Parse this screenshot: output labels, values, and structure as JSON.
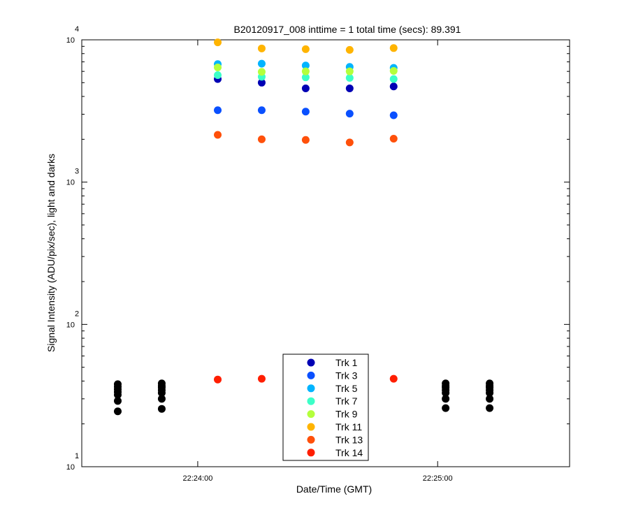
{
  "chart_data": {
    "type": "scatter",
    "title": "B20120917_008 inttime = 1 total time (secs): 89.391",
    "xlabel": "Date/Time (GMT)",
    "ylabel": "Signal Intensity (ADU/pix/sec), light and darks",
    "yscale": "log",
    "ylim": [
      10,
      10000
    ],
    "xlim": [
      "22:23:31",
      "22:25:33"
    ],
    "x_ticks": [
      {
        "value": "22:24:00",
        "label": "22:24:00"
      },
      {
        "value": "22:25:00",
        "label": "22:25:00"
      }
    ],
    "y_ticks": [
      {
        "value": 10,
        "base": "10",
        "exp": "1"
      },
      {
        "value": 100,
        "base": "10",
        "exp": "2"
      },
      {
        "value": 1000,
        "base": "10",
        "exp": "3"
      },
      {
        "value": 10000,
        "base": "10",
        "exp": "4"
      }
    ],
    "grid": false,
    "legend_position": "bottom-center",
    "series": [
      {
        "name": "Trk 1",
        "color": "#0000b4",
        "x": [
          "22:24:05",
          "22:24:16",
          "22:24:27",
          "22:24:38",
          "22:24:49"
        ],
        "y": [
          5300,
          5000,
          4560,
          4560,
          4700
        ]
      },
      {
        "name": "Trk 3",
        "color": "#0a50ff",
        "x": [
          "22:24:05",
          "22:24:16",
          "22:24:27",
          "22:24:38",
          "22:24:49"
        ],
        "y": [
          3200,
          3200,
          3130,
          3030,
          2950
        ]
      },
      {
        "name": "Trk 5",
        "color": "#00b4ff",
        "x": [
          "22:24:05",
          "22:24:16",
          "22:24:27",
          "22:24:38",
          "22:24:49"
        ],
        "y": [
          6750,
          6800,
          6600,
          6450,
          6350
        ]
      },
      {
        "name": "Trk 7",
        "color": "#3cffc8",
        "x": [
          "22:24:05",
          "22:24:16",
          "22:24:27",
          "22:24:38",
          "22:24:49"
        ],
        "y": [
          5650,
          5500,
          5450,
          5400,
          5300
        ]
      },
      {
        "name": "Trk 9",
        "color": "#b4ff3c",
        "x": [
          "22:24:05",
          "22:24:16",
          "22:24:27",
          "22:24:38",
          "22:24:49"
        ],
        "y": [
          6400,
          5950,
          6000,
          6000,
          6050
        ]
      },
      {
        "name": "Trk 11",
        "color": "#ffb400",
        "x": [
          "22:24:05",
          "22:24:16",
          "22:24:27",
          "22:24:38",
          "22:24:49"
        ],
        "y": [
          9600,
          8700,
          8600,
          8500,
          8750
        ]
      },
      {
        "name": "Trk 13",
        "color": "#ff500a",
        "x": [
          "22:24:05",
          "22:24:16",
          "22:24:27",
          "22:24:38",
          "22:24:49"
        ],
        "y": [
          2150,
          2000,
          1980,
          1900,
          2020
        ]
      },
      {
        "name": "Trk 14",
        "color": "#ff1e00",
        "x": [
          "22:24:05",
          "22:24:16",
          "22:24:27",
          "22:24:38",
          "22:24:49"
        ],
        "y": [
          41,
          41.5,
          41,
          41,
          41.5
        ]
      },
      {
        "color": "#000000",
        "x": [
          "22:23:40",
          "22:23:40",
          "22:23:40",
          "22:23:40",
          "22:23:40",
          "22:23:40",
          "22:23:40",
          "22:23:51",
          "22:23:51",
          "22:23:51",
          "22:23:51",
          "22:23:51",
          "22:23:51",
          "22:23:51",
          "22:25:02",
          "22:25:02",
          "22:25:02",
          "22:25:02",
          "22:25:02",
          "22:25:02",
          "22:25:02",
          "22:25:13",
          "22:25:13",
          "22:25:13",
          "22:25:13",
          "22:25:13",
          "22:25:13",
          "22:25:13"
        ],
        "y": [
          38,
          36.5,
          35,
          33.5,
          32,
          29,
          24.5,
          38.5,
          37,
          36,
          34.5,
          33,
          30,
          25.5,
          38.5,
          37,
          36,
          34.5,
          33,
          30,
          25.8,
          38.5,
          37,
          36,
          34.5,
          33,
          30,
          25.8
        ]
      }
    ]
  }
}
